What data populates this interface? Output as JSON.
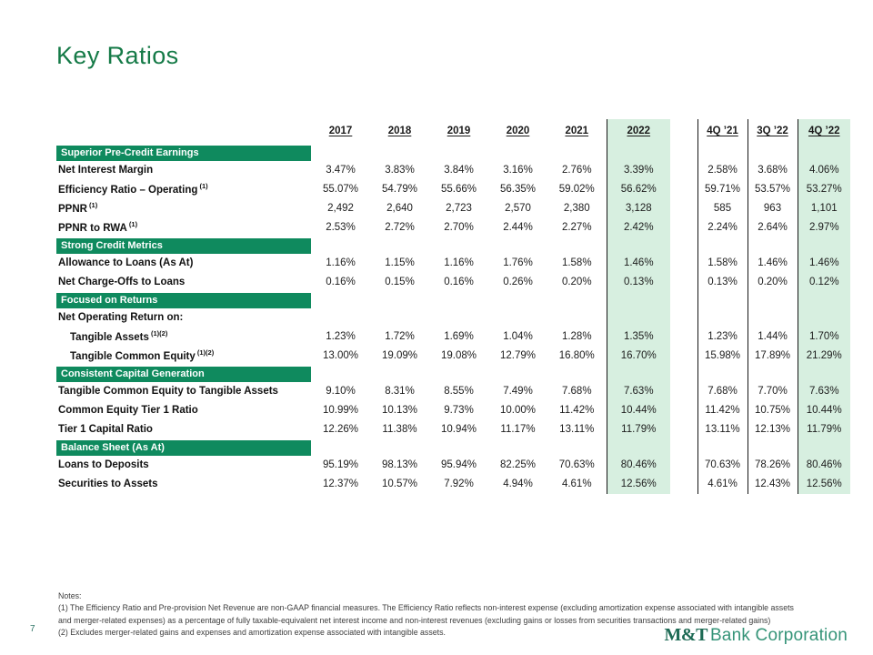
{
  "slide": {
    "title": "Key Ratios",
    "page_number": "7"
  },
  "colors": {
    "section_bar_green": "#0f8a5e",
    "highlight_mint": "#d7efe0",
    "title_green": "#157a47",
    "logo_dark_green": "#1d6a54",
    "logo_light_green": "#359478",
    "divider_black": "#161616"
  },
  "table": {
    "columns": [
      "2017",
      "2018",
      "2019",
      "2020",
      "2021",
      "2022",
      "4Q ’21",
      "3Q ’22",
      "4Q ’22"
    ],
    "highlighted_columns": [
      "2022",
      "4Q ’22"
    ],
    "rows": [
      {
        "type": "section",
        "label": "Superior Pre-Credit Earnings"
      },
      {
        "type": "data",
        "label": "Net Interest Margin",
        "sup": "",
        "indent": false,
        "values": [
          "3.47%",
          "3.83%",
          "3.84%",
          "3.16%",
          "2.76%",
          "3.39%",
          "2.58%",
          "3.68%",
          "4.06%"
        ]
      },
      {
        "type": "data",
        "label": "Efficiency Ratio – Operating",
        "sup": "(1)",
        "indent": false,
        "values": [
          "55.07%",
          "54.79%",
          "55.66%",
          "56.35%",
          "59.02%",
          "56.62%",
          "59.71%",
          "53.57%",
          "53.27%"
        ]
      },
      {
        "type": "data",
        "label": "PPNR",
        "sup": "(1)",
        "indent": false,
        "values": [
          "2,492",
          "2,640",
          "2,723",
          "2,570",
          "2,380",
          "3,128",
          "585",
          "963",
          "1,101"
        ]
      },
      {
        "type": "data",
        "label": "PPNR to RWA",
        "sup": "(1)",
        "indent": false,
        "values": [
          "2.53%",
          "2.72%",
          "2.70%",
          "2.44%",
          "2.27%",
          "2.42%",
          "2.24%",
          "2.64%",
          "2.97%"
        ]
      },
      {
        "type": "section",
        "label": "Strong Credit Metrics"
      },
      {
        "type": "data",
        "label": "Allowance to Loans (As At)",
        "sup": "",
        "indent": false,
        "values": [
          "1.16%",
          "1.15%",
          "1.16%",
          "1.76%",
          "1.58%",
          "1.46%",
          "1.58%",
          "1.46%",
          "1.46%"
        ]
      },
      {
        "type": "data",
        "label": "Net Charge-Offs to Loans",
        "sup": "",
        "indent": false,
        "values": [
          "0.16%",
          "0.15%",
          "0.16%",
          "0.26%",
          "0.20%",
          "0.13%",
          "0.13%",
          "0.20%",
          "0.12%"
        ]
      },
      {
        "type": "section",
        "label": "Focused on Returns"
      },
      {
        "type": "data",
        "label": "Net Operating Return on:",
        "sup": "",
        "indent": false,
        "values": null
      },
      {
        "type": "data",
        "label": "Tangible Assets",
        "sup": "(1)(2)",
        "indent": true,
        "values": [
          "1.23%",
          "1.72%",
          "1.69%",
          "1.04%",
          "1.28%",
          "1.35%",
          "1.23%",
          "1.44%",
          "1.70%"
        ]
      },
      {
        "type": "data",
        "label": "Tangible Common Equity",
        "sup": "(1)(2)",
        "indent": true,
        "values": [
          "13.00%",
          "19.09%",
          "19.08%",
          "12.79%",
          "16.80%",
          "16.70%",
          "15.98%",
          "17.89%",
          "21.29%"
        ]
      },
      {
        "type": "section",
        "label": "Consistent Capital Generation"
      },
      {
        "type": "data",
        "label": "Tangible Common Equity to Tangible Assets",
        "sup": "",
        "indent": false,
        "values": [
          "9.10%",
          "8.31%",
          "8.55%",
          "7.49%",
          "7.68%",
          "7.63%",
          "7.68%",
          "7.70%",
          "7.63%"
        ]
      },
      {
        "type": "data",
        "label": "Common Equity Tier 1 Ratio",
        "sup": "",
        "indent": false,
        "values": [
          "10.99%",
          "10.13%",
          "9.73%",
          "10.00%",
          "11.42%",
          "10.44%",
          "11.42%",
          "10.75%",
          "10.44%"
        ]
      },
      {
        "type": "data",
        "label": "Tier 1 Capital Ratio",
        "sup": "",
        "indent": false,
        "values": [
          "12.26%",
          "11.38%",
          "10.94%",
          "11.17%",
          "13.11%",
          "11.79%",
          "13.11%",
          "12.13%",
          "11.79%"
        ]
      },
      {
        "type": "section",
        "label": "Balance Sheet (As At)"
      },
      {
        "type": "data",
        "label": "Loans to Deposits",
        "sup": "",
        "indent": false,
        "values": [
          "95.19%",
          "98.13%",
          "95.94%",
          "82.25%",
          "70.63%",
          "80.46%",
          "70.63%",
          "78.26%",
          "80.46%"
        ]
      },
      {
        "type": "data",
        "label": "Securities to Assets",
        "sup": "",
        "indent": false,
        "values": [
          "12.37%",
          "10.57%",
          "7.92%",
          "4.94%",
          "4.61%",
          "12.56%",
          "4.61%",
          "12.43%",
          "12.56%"
        ]
      }
    ]
  },
  "notes": {
    "heading": "Notes:",
    "line1": "(1) The Efficiency Ratio and Pre-provision Net Revenue are non-GAAP financial measures. The Efficiency Ratio reflects non-interest expense (excluding amortization expense associated with intangible assets",
    "line2": "and merger-related expenses) as a percentage of fully taxable-equivalent net interest income and non-interest revenues (excluding gains or losses from securities transactions and merger-related gains)",
    "line3": "(2) Excludes merger-related gains and expenses and amortization expense associated with intangible assets."
  },
  "footer": {
    "logo_mt": "M&T",
    "logo_rest": "Bank Corporation"
  }
}
